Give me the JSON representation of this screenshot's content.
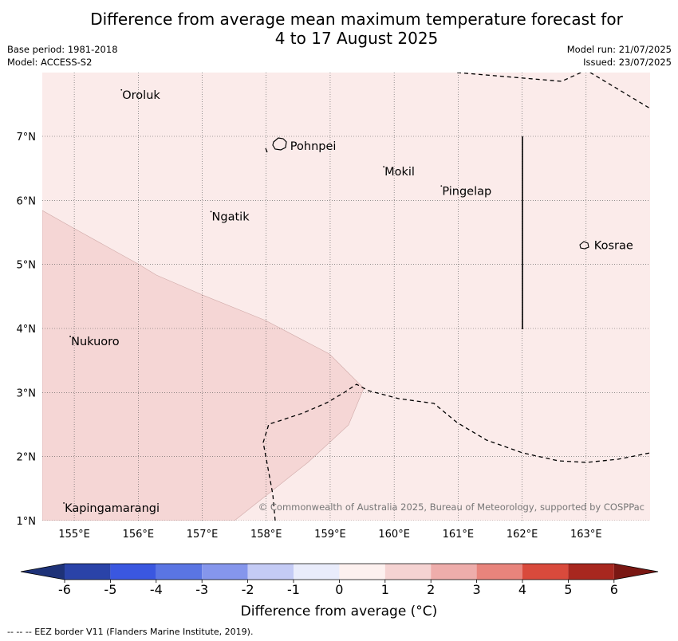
{
  "title_line1": "Difference from average mean maximum temperature forecast for",
  "title_line2": "4 to 17 August 2025",
  "meta": {
    "base_period": "Base period: 1981-2018",
    "model": "Model: ACCESS-S2",
    "model_run": "Model run: 21/07/2025",
    "issued": "Issued: 23/07/2025"
  },
  "map": {
    "lon_range": [
      154.5,
      164.0
    ],
    "lat_range": [
      1.0,
      8.0
    ],
    "lon_ticks": [
      {
        "v": 155,
        "label": "155°E"
      },
      {
        "v": 156,
        "label": "156°E"
      },
      {
        "v": 157,
        "label": "157°E"
      },
      {
        "v": 158,
        "label": "158°E"
      },
      {
        "v": 159,
        "label": "159°E"
      },
      {
        "v": 160,
        "label": "160°E"
      },
      {
        "v": 161,
        "label": "161°E"
      },
      {
        "v": 162,
        "label": "162°E"
      },
      {
        "v": 163,
        "label": "163°E"
      }
    ],
    "lat_ticks": [
      {
        "v": 1,
        "label": "1°N"
      },
      {
        "v": 2,
        "label": "2°N"
      },
      {
        "v": 3,
        "label": "3°N"
      },
      {
        "v": 4,
        "label": "4°N"
      },
      {
        "v": 5,
        "label": "5°N"
      },
      {
        "v": 6,
        "label": "6°N"
      },
      {
        "v": 7,
        "label": "7°N"
      }
    ],
    "places": [
      {
        "name": "Oroluk",
        "lon": 155.75,
        "lat": 7.65
      },
      {
        "name": "Pohnpei",
        "lon": 158.35,
        "lat": 6.85
      },
      {
        "name": "Mokil",
        "lon": 159.85,
        "lat": 6.45
      },
      {
        "name": "Pingelap",
        "lon": 160.75,
        "lat": 6.15
      },
      {
        "name": "Ngatik",
        "lon": 157.15,
        "lat": 5.75
      },
      {
        "name": "Kosrae",
        "lon": 163.0,
        "lat": 5.3
      },
      {
        "name": "Nukuoro",
        "lon": 154.95,
        "lat": 3.8
      },
      {
        "name": "Kapingamarangi",
        "lon": 154.85,
        "lat": 1.2
      }
    ],
    "credit": "© Commonwealth of Australia 2025, Bureau of Meteorology, supported by COSPPac",
    "background_color": "#fbebea",
    "anomaly_region_color": "#f5d6d5",
    "anomaly_region_value_range": [
      1,
      2
    ]
  },
  "colorbar": {
    "title": "Difference from average (°C)",
    "ticks": [
      "-6",
      "-5",
      "-4",
      "-3",
      "-2",
      "-1",
      "0",
      "1",
      "2",
      "3",
      "4",
      "5",
      "6"
    ],
    "colors": [
      "#2a43a8",
      "#3a57e0",
      "#5a75e3",
      "#8596ec",
      "#c4cbf5",
      "#e9ecfb",
      "#fdf1ef",
      "#f5d3d2",
      "#eeadab",
      "#e8847c",
      "#d94a3c",
      "#a8271f"
    ],
    "under_color": "#1e3278",
    "over_color": "#7a1713"
  },
  "footer": "--  --  -- EEZ border V11 (Flanders Marine Institute, 2019)."
}
